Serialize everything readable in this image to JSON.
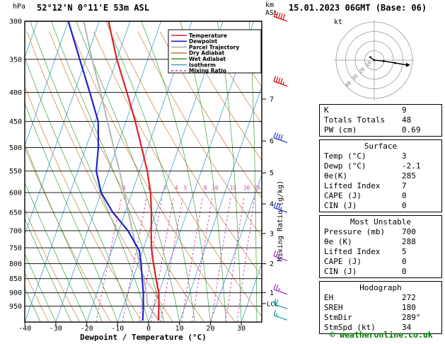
{
  "header": {
    "location": "52°12'N 0°11'E 53m ASL",
    "datetime": "15.01.2023 06GMT (Base: 06)",
    "pressure_unit": "hPa",
    "km_label_line1": "km",
    "km_label_line2": "ASL"
  },
  "axes": {
    "pressure_ticks": [
      300,
      350,
      400,
      450,
      500,
      550,
      600,
      650,
      700,
      750,
      800,
      850,
      900,
      950
    ],
    "temp_ticks": [
      -40,
      -30,
      -20,
      -10,
      0,
      10,
      20,
      30
    ],
    "xlabel": "Dewpoint / Temperature (°C)",
    "km_ticks": [
      {
        "km": "7",
        "p": 411
      },
      {
        "km": "6",
        "p": 487
      },
      {
        "km": "5",
        "p": 554
      },
      {
        "km": "4",
        "p": 628
      },
      {
        "km": "3",
        "p": 708
      },
      {
        "km": "2",
        "p": 800
      },
      {
        "km": "1",
        "p": 899
      }
    ],
    "lcl_label": "LCL",
    "mixing_ratio_axis_label": "Mixing Ratio (g/kg)"
  },
  "legend": [
    {
      "label": "Temperature",
      "color": "#e02020",
      "dash": ""
    },
    {
      "label": "Dewpoint",
      "color": "#2020d0",
      "dash": ""
    },
    {
      "label": "Parcel Trajectory",
      "color": "#b0b0b0",
      "dash": ""
    },
    {
      "label": "Dry Adiabat",
      "color": "#c87d3c",
      "dash": ""
    },
    {
      "label": "Wet Adiabat",
      "color": "#3ca03c",
      "dash": ""
    },
    {
      "label": "Isotherm",
      "color": "#3fa0d0",
      "dash": ""
    },
    {
      "label": "Mixing Ratio",
      "color": "#d040b0",
      "dash": "3 3"
    }
  ],
  "chart_data": {
    "type": "line",
    "title": "Skew-T log-P radiosonde sounding",
    "pressure_range_hpa": [
      300,
      1013
    ],
    "temp_axis_range_c": [
      -40,
      35
    ],
    "grid": "skew-t background (isotherms, dry/wet adiabats, mixing ratio lines)",
    "mixing_ratio_lines_g_kg": [
      1,
      2,
      3,
      4,
      5,
      8,
      10,
      15,
      20,
      25
    ],
    "lcl_pressure_hpa": 940,
    "temperature_profile": {
      "pressure_hpa": [
        1005,
        950,
        900,
        850,
        800,
        750,
        700,
        650,
        600,
        550,
        500,
        450,
        400,
        350,
        300
      ],
      "temp_c": [
        3,
        1.5,
        0,
        -2.5,
        -5,
        -7.5,
        -9.5,
        -11.5,
        -14,
        -17.5,
        -22,
        -27,
        -33,
        -40,
        -47
      ]
    },
    "dewpoint_profile": {
      "pressure_hpa": [
        1005,
        950,
        900,
        850,
        800,
        760,
        700,
        650,
        600,
        550,
        500,
        450,
        400,
        350,
        300
      ],
      "temp_c": [
        -2.1,
        -3.5,
        -5,
        -7,
        -9,
        -11,
        -17,
        -24,
        -30,
        -34,
        -36,
        -39,
        -45,
        -52,
        -60
      ]
    },
    "parcel_profile": {
      "pressure_hpa": [
        1005,
        940,
        900,
        850,
        800,
        750,
        700,
        650,
        600,
        550,
        500,
        450,
        400,
        350,
        300
      ],
      "temp_c": [
        3,
        -2.5,
        -4,
        -6.5,
        -9.5,
        -12.5,
        -15.5,
        -19,
        -22.5,
        -26.5,
        -31,
        -36,
        -41.5,
        -48,
        -55
      ]
    },
    "wind_barbs": [
      {
        "pressure_hpa": 300,
        "speed_kt": 50,
        "color": "#cc0000"
      },
      {
        "pressure_hpa": 390,
        "speed_kt": 45,
        "color": "#cc0000"
      },
      {
        "pressure_hpa": 490,
        "speed_kt": 40,
        "color": "#2233cc"
      },
      {
        "pressure_hpa": 650,
        "speed_kt": 35,
        "color": "#2233cc"
      },
      {
        "pressure_hpa": 790,
        "speed_kt": 30,
        "color": "#9933bb"
      },
      {
        "pressure_hpa": 905,
        "speed_kt": 25,
        "color": "#9933bb"
      },
      {
        "pressure_hpa": 960,
        "speed_kt": 20,
        "color": "#00a0a0"
      },
      {
        "pressure_hpa": 1005,
        "speed_kt": 15,
        "color": "#00a0a0"
      }
    ],
    "colors": {
      "temperature": "#e02020",
      "dewpoint": "#2020d0",
      "parcel": "#b0b0b0",
      "dry_adiabat": "#c87d3c",
      "wet_adiabat": "#3ca03c",
      "isotherm": "#3fa0d0",
      "mixing_ratio": "#d040b0",
      "frame": "#000000",
      "barb_red": "#cc0000",
      "barb_blue": "#2233cc",
      "barb_purple": "#9933bb",
      "barb_cyan": "#00a0a0"
    }
  },
  "hodograph": {
    "unit_label": "kt",
    "ring_labels_kt": [
      10,
      20,
      30,
      40
    ],
    "trace_u_v_kt": [
      [
        -4,
        3
      ],
      [
        0,
        0
      ],
      [
        10,
        -1
      ],
      [
        22,
        -3
      ],
      [
        34,
        -5
      ]
    ],
    "storm_motion": {
      "dir_deg": 289,
      "speed_kt": 34
    }
  },
  "stats": {
    "indices": [
      {
        "label": "K",
        "value": "9"
      },
      {
        "label": "Totals Totals",
        "value": "48"
      },
      {
        "label": "PW (cm)",
        "value": "0.69"
      }
    ],
    "surface": {
      "title": "Surface",
      "rows": [
        {
          "label": "Temp (°C)",
          "value": "3"
        },
        {
          "label": "Dewp (°C)",
          "value": "-2.1"
        },
        {
          "label": "θe(K)",
          "value": "285"
        },
        {
          "label": "Lifted Index",
          "value": "7"
        },
        {
          "label": "CAPE (J)",
          "value": "0"
        },
        {
          "label": "CIN (J)",
          "value": "0"
        }
      ]
    },
    "most_unstable": {
      "title": "Most Unstable",
      "rows": [
        {
          "label": "Pressure (mb)",
          "value": "700"
        },
        {
          "label": "θe (K)",
          "value": "288"
        },
        {
          "label": "Lifted Index",
          "value": "5"
        },
        {
          "label": "CAPE (J)",
          "value": "0"
        },
        {
          "label": "CIN (J)",
          "value": "0"
        }
      ]
    },
    "hodograph_stats": {
      "title": "Hodograph",
      "rows": [
        {
          "label": "EH",
          "value": "272"
        },
        {
          "label": "SREH",
          "value": "180"
        },
        {
          "label": "StmDir",
          "value": "289°"
        },
        {
          "label": "StmSpd (kt)",
          "value": "34"
        }
      ]
    }
  },
  "footer": {
    "credit": "© weatheronline.co.uk"
  }
}
